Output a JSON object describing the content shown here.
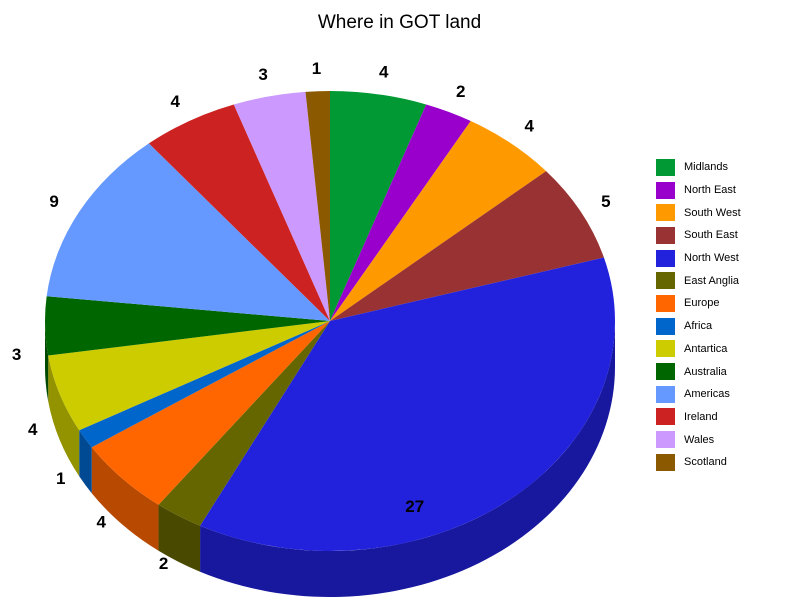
{
  "chart_data": {
    "type": "pie",
    "title": "Where in GOT land",
    "three_d": true,
    "legend_position": "right",
    "categories": [
      "Midlands",
      "North East",
      "South West",
      "South East",
      "North West",
      "East Anglia",
      "Europe",
      "Africa",
      "Antartica",
      "Australia",
      "Americas",
      "Ireland",
      "Wales",
      "Scotland"
    ],
    "values": [
      4,
      2,
      4,
      5,
      27,
      2,
      4,
      1,
      4,
      3,
      9,
      4,
      3,
      1
    ],
    "colors": [
      "#009933",
      "#9900cc",
      "#ff9900",
      "#993333",
      "#2222dd",
      "#666600",
      "#ff6600",
      "#0066cc",
      "#cccc00",
      "#006600",
      "#6699ff",
      "#cc2222",
      "#cc99ff",
      "#8b5a00"
    ]
  }
}
